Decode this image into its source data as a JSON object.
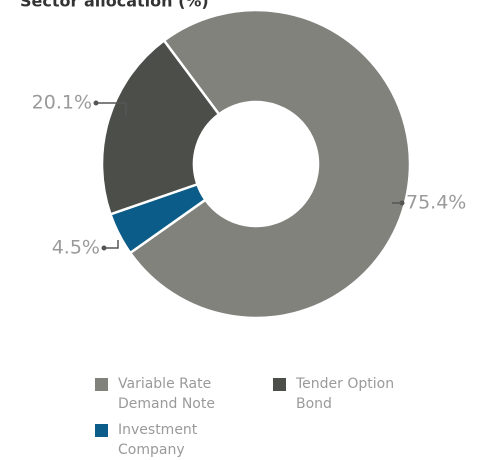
{
  "chart_data": {
    "type": "donut",
    "title": "Sector allocation (%)",
    "categories": [
      "Variable Rate Demand Note",
      "Investment Company",
      "Tender Option Bond"
    ],
    "values": [
      75.4,
      4.5,
      20.1
    ],
    "value_labels": [
      "75.4%",
      "4.5%",
      "20.1%"
    ],
    "colors": [
      "#81827c",
      "#0b5c88",
      "#4c4e49"
    ],
    "legend": "bottom"
  }
}
